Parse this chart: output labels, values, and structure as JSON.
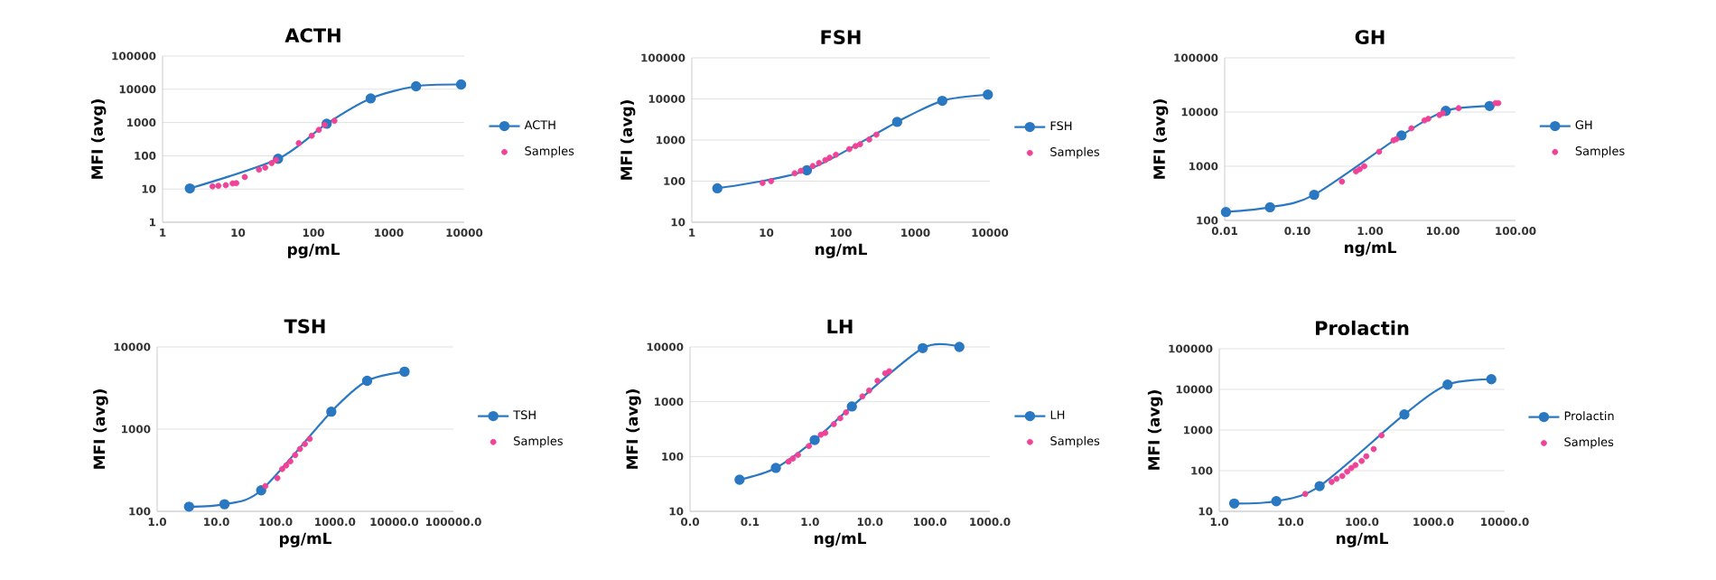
{
  "chart_data": [
    {
      "type": "line",
      "title": "ACTH",
      "xlabel": "pg/mL",
      "ylabel": "MFI (avg)",
      "log": "xy",
      "grid": "y",
      "legend": "right",
      "marker": "circle",
      "xlim": [
        1,
        10000
      ],
      "ylim": [
        1,
        100000
      ],
      "xticks": [
        1,
        10,
        100,
        1000,
        10000
      ],
      "yticks": [
        1,
        10,
        100,
        1000,
        10000,
        100000
      ],
      "series": [
        {
          "name": "ACTH",
          "color": "#2a78c2",
          "x": [
            2.3,
            34,
            150,
            575,
            2300,
            9100
          ],
          "values": [
            10.4,
            81,
            920,
            5300,
            12300,
            13900
          ]
        },
        {
          "name": "Samples",
          "type": "scatter",
          "color": "#ee4396",
          "x": [
            4.6,
            5.5,
            6.9,
            8.5,
            9.5,
            12.3,
            19,
            23,
            28,
            32,
            64,
            95,
            118,
            141,
            190
          ],
          "values": [
            12,
            12.5,
            13,
            14.7,
            15,
            23,
            38,
            44,
            60,
            75,
            240,
            400,
            600,
            850,
            1120
          ]
        }
      ]
    },
    {
      "type": "line",
      "title": "FSH",
      "xlabel": "ng/mL",
      "ylabel": "MFI (avg)",
      "log": "xy",
      "grid": "y",
      "legend": "right",
      "marker": "circle",
      "xlim": [
        1,
        10000
      ],
      "ylim": [
        10,
        100000
      ],
      "xticks": [
        1,
        10,
        100,
        1000,
        10000
      ],
      "yticks": [
        10,
        100,
        1000,
        10000,
        100000
      ],
      "series": [
        {
          "name": "FSH",
          "color": "#2a78c2",
          "x": [
            2.2,
            35,
            570,
            2300,
            9400
          ],
          "values": [
            67,
            184,
            2760,
            9000,
            12700
          ]
        },
        {
          "name": "Samples",
          "type": "scatter",
          "color": "#ee4396",
          "x": [
            8.9,
            11.6,
            24,
            29,
            42,
            51,
            62,
            71,
            86,
            130,
            157,
            181,
            240,
            300
          ],
          "values": [
            90,
            100,
            155,
            178,
            233,
            276,
            326,
            374,
            440,
            600,
            710,
            790,
            1030,
            1350
          ]
        }
      ]
    },
    {
      "type": "line",
      "title": "GH",
      "xlabel": "ng/mL",
      "ylabel": "MFI (avg)",
      "log": "xy",
      "grid": "y",
      "legend": "right",
      "marker": "circle",
      "xlim": [
        0.01,
        100
      ],
      "ylim": [
        100,
        100000
      ],
      "xticks": [
        0.01,
        {
          "value": 0.1,
          "label": "0.10"
        },
        {
          "value": 1,
          "label": "1.00"
        },
        {
          "value": 10,
          "label": "10.00"
        },
        {
          "value": 100,
          "label": "100.00"
        }
      ],
      "yticks": [
        100,
        1000,
        10000,
        100000
      ],
      "series": [
        {
          "name": "GH",
          "color": "#2a78c2",
          "x": [
            0.0104,
            0.042,
            0.17,
            2.7,
            11,
            44
          ],
          "values": [
            143,
            175,
            297,
            3700,
            10500,
            12900
          ]
        },
        {
          "name": "Samples",
          "type": "scatter",
          "color": "#ee4396",
          "x": [
            0.41,
            0.64,
            0.72,
            0.83,
            1.33,
            2.1,
            2.3,
            3.7,
            5.6,
            6.3,
            9,
            10,
            16.5,
            53,
            58
          ],
          "values": [
            520,
            800,
            880,
            1000,
            1850,
            3000,
            3150,
            5000,
            7000,
            7500,
            8800,
            9500,
            11800,
            14600,
            14600
          ]
        }
      ]
    },
    {
      "type": "line",
      "title": "TSH",
      "xlabel": "pg/mL",
      "ylabel": "MFI (avg)",
      "log": "xy",
      "grid": "y",
      "legend": "right",
      "marker": "circle",
      "xlim": [
        1,
        100000
      ],
      "ylim": [
        100,
        10000
      ],
      "xticks": [
        {
          "value": 1,
          "label": "1.0"
        },
        {
          "value": 10,
          "label": "10.0"
        },
        {
          "value": 100,
          "label": "100.0"
        },
        {
          "value": 1000,
          "label": "1000.0"
        },
        {
          "value": 10000,
          "label": "10000.0"
        },
        {
          "value": 100000,
          "label": "100000.0"
        }
      ],
      "yticks": [
        100,
        1000,
        10000
      ],
      "series": [
        {
          "name": "TSH",
          "color": "#2a78c2",
          "x": [
            3.45,
            13.7,
            57,
            870,
            3500,
            15000
          ],
          "values": [
            114,
            122,
            180,
            1630,
            3870,
            5000
          ]
        },
        {
          "name": "Samples",
          "type": "scatter",
          "color": "#ee4396",
          "x": [
            67,
            107,
            129,
            151,
            177,
            214,
            257,
            312,
            376
          ],
          "values": [
            203,
            254,
            327,
            362,
            406,
            483,
            573,
            660,
            760
          ]
        }
      ]
    },
    {
      "type": "line",
      "title": "LH",
      "xlabel": "ng/mL",
      "ylabel": "MFI (avg)",
      "log": "xy",
      "grid": "y",
      "legend": "right",
      "marker": "circle",
      "xlim": [
        0.01,
        1000
      ],
      "ylim": [
        10,
        10000
      ],
      "xticks": [
        {
          "value": 0.01,
          "label": "0.0"
        },
        0.1,
        {
          "value": 1,
          "label": "1.0"
        },
        {
          "value": 10,
          "label": "10.0"
        },
        {
          "value": 100,
          "label": "100.0"
        },
        {
          "value": 1000,
          "label": "1000.0"
        }
      ],
      "yticks": [
        10,
        100,
        1000,
        10000
      ],
      "series": [
        {
          "name": "LH",
          "color": "#2a78c2",
          "x": [
            0.067,
            0.27,
            1.2,
            5.0,
            76,
            310
          ],
          "values": [
            37.7,
            62,
            200,
            820,
            9500,
            10000
          ]
        },
        {
          "name": "Samples",
          "type": "scatter",
          "color": "#ee4396",
          "x": [
            0.44,
            0.52,
            0.63,
            0.96,
            1.52,
            1.8,
            2.5,
            3.2,
            4.0,
            7.5,
            9.7,
            13.4,
            18,
            21
          ],
          "values": [
            81,
            92,
            107,
            155,
            250,
            270,
            390,
            500,
            640,
            1250,
            1600,
            2400,
            3300,
            3600
          ]
        }
      ]
    },
    {
      "type": "line",
      "title": "Prolactin",
      "xlabel": "ng/mL",
      "ylabel": "MFI (avg)",
      "log": "xy",
      "grid": "y",
      "legend": "right",
      "marker": "circle",
      "xlim": [
        1,
        10000
      ],
      "ylim": [
        10,
        100000
      ],
      "xticks": [
        {
          "value": 1,
          "label": "1.0"
        },
        {
          "value": 10,
          "label": "10.0"
        },
        {
          "value": 100,
          "label": "100.0"
        },
        {
          "value": 1000,
          "label": "1000.0"
        },
        {
          "value": 10000,
          "label": "10000.0"
        }
      ],
      "yticks": [
        10,
        100,
        1000,
        10000,
        100000
      ],
      "series": [
        {
          "name": "Prolactin",
          "color": "#2a78c2",
          "x": [
            1.62,
            6.3,
            25.5,
            393,
            1585,
            6500
          ],
          "values": [
            15.6,
            17.8,
            41.7,
            2420,
            13100,
            17800
          ]
        },
        {
          "name": "Samples",
          "type": "scatter",
          "color": "#ee4396",
          "x": [
            16,
            37.6,
            44,
            53,
            62,
            71,
            81,
            99,
            115,
            146,
            188
          ],
          "values": [
            26.8,
            53,
            63,
            74,
            95,
            116,
            137,
            174,
            226,
            340,
            740
          ]
        }
      ]
    }
  ]
}
